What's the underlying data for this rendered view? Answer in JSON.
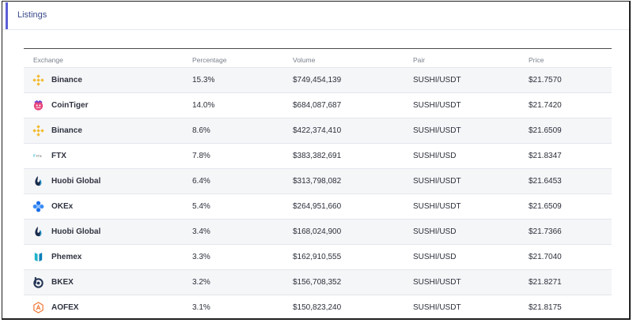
{
  "header": {
    "title": "Listings"
  },
  "table": {
    "columns": [
      "Exchange",
      "Percentage",
      "Volume",
      "Pair",
      "Price"
    ],
    "rows": [
      {
        "exchange": "Binance",
        "icon": "binance-icon",
        "percentage": "15.3%",
        "volume": "$749,454,139",
        "pair": "SUSHI/USDT",
        "price": "$21.7570"
      },
      {
        "exchange": "CoinTiger",
        "icon": "cointiger-icon",
        "percentage": "14.0%",
        "volume": "$684,087,687",
        "pair": "SUSHI/USDT",
        "price": "$21.7420"
      },
      {
        "exchange": "Binance",
        "icon": "binance-icon",
        "percentage": "8.6%",
        "volume": "$422,374,410",
        "pair": "SUSHI/USDT",
        "price": "$21.6509"
      },
      {
        "exchange": "FTX",
        "icon": "ftx-icon",
        "percentage": "7.8%",
        "volume": "$383,382,691",
        "pair": "SUSHI/USD",
        "price": "$21.8347"
      },
      {
        "exchange": "Huobi Global",
        "icon": "huobi-icon",
        "percentage": "6.4%",
        "volume": "$313,798,082",
        "pair": "SUSHI/USDT",
        "price": "$21.6453"
      },
      {
        "exchange": "OKEx",
        "icon": "okex-icon",
        "percentage": "5.4%",
        "volume": "$264,951,660",
        "pair": "SUSHI/USDT",
        "price": "$21.6509"
      },
      {
        "exchange": "Huobi Global",
        "icon": "huobi-icon",
        "percentage": "3.4%",
        "volume": "$168,024,900",
        "pair": "SUSHI/USD",
        "price": "$21.7366"
      },
      {
        "exchange": "Phemex",
        "icon": "phemex-icon",
        "percentage": "3.3%",
        "volume": "$162,910,555",
        "pair": "SUSHI/USD",
        "price": "$21.7040"
      },
      {
        "exchange": "BKEX",
        "icon": "bkex-icon",
        "percentage": "3.2%",
        "volume": "$156,708,352",
        "pair": "SUSHI/USDT",
        "price": "$21.8271"
      },
      {
        "exchange": "AOFEX",
        "icon": "aofex-icon",
        "percentage": "3.1%",
        "volume": "$150,823,240",
        "pair": "SUSHI/USDT",
        "price": "$21.8175"
      }
    ]
  },
  "colors": {
    "accent": "#5b5fd6",
    "row_alt": "#f5f6f8"
  }
}
